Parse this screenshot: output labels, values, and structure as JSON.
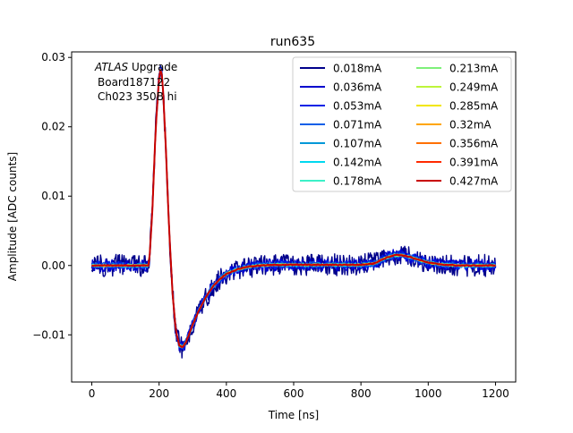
{
  "chart_data": {
    "type": "line",
    "title": "run635",
    "xlabel": "Time [ns]",
    "ylabel": "Amplitude [ADC counts]",
    "xlim": [
      -60,
      1260
    ],
    "ylim": [
      -0.0168,
      0.0308
    ],
    "xticks": [
      0,
      200,
      400,
      600,
      800,
      1000,
      1200
    ],
    "yticks": [
      -0.01,
      0.0,
      0.01,
      0.02,
      0.03
    ],
    "xtick_labels": [
      "0",
      "200",
      "400",
      "600",
      "800",
      "1000",
      "1200"
    ],
    "ytick_labels": [
      "−0.01",
      "0.00",
      "0.01",
      "0.02",
      "0.03"
    ],
    "grid": false,
    "legend_position": "top-right",
    "legend_columns": 2,
    "annotation": {
      "line1_italic": "ATLAS",
      "line1_rest": " Upgrade",
      "line2": "Board187122",
      "line3": "Ch023 350B hi"
    },
    "pulse_shape": {
      "t": [
        0,
        170,
        180,
        190,
        200,
        205,
        210,
        220,
        230,
        240,
        250,
        260,
        270,
        280,
        290,
        300,
        320,
        340,
        360,
        380,
        400,
        430,
        460,
        500,
        550,
        600,
        700,
        800,
        840,
        860,
        880,
        900,
        920,
        940,
        960,
        980,
        1000,
        1050,
        1100,
        1200
      ],
      "amplitude": [
        0,
        0,
        0.008,
        0.02,
        0.027,
        0.0285,
        0.027,
        0.017,
        0.005,
        -0.004,
        -0.0095,
        -0.0115,
        -0.0118,
        -0.011,
        -0.0098,
        -0.0085,
        -0.0063,
        -0.0045,
        -0.003,
        -0.002,
        -0.0012,
        -0.0006,
        -0.0002,
        0,
        0.0001,
        0.0001,
        0.0001,
        0.0001,
        0.0003,
        0.0008,
        0.0012,
        0.0015,
        0.0015,
        0.0013,
        0.001,
        0.0007,
        0.0004,
        0.0001,
        0,
        0
      ]
    },
    "series": [
      {
        "name": "0.018mA",
        "color": "#00008b",
        "noise": 0.0016
      },
      {
        "name": "0.036mA",
        "color": "#0000cd",
        "noise": 0.0009
      },
      {
        "name": "0.053mA",
        "color": "#0022e6",
        "noise": 0.0006
      },
      {
        "name": "0.071mA",
        "color": "#0b5fe8",
        "noise": 0.00045
      },
      {
        "name": "0.107mA",
        "color": "#0098d8",
        "noise": 0.0003
      },
      {
        "name": "0.142mA",
        "color": "#00d8f0",
        "noise": 0.00022
      },
      {
        "name": "0.178mA",
        "color": "#3cf0c8",
        "noise": 0.00018
      },
      {
        "name": "0.213mA",
        "color": "#7ef07a",
        "noise": 0.00015
      },
      {
        "name": "0.249mA",
        "color": "#bdf53a",
        "noise": 0.00013
      },
      {
        "name": "0.285mA",
        "color": "#f2e600",
        "noise": 0.00011
      },
      {
        "name": "0.32mA",
        "color": "#ffa500",
        "noise": 0.0001
      },
      {
        "name": "0.356mA",
        "color": "#ff7000",
        "noise": 9e-05
      },
      {
        "name": "0.391mA",
        "color": "#ff2a00",
        "noise": 8e-05
      },
      {
        "name": "0.427mA",
        "color": "#c80000",
        "noise": 7e-05
      }
    ]
  }
}
